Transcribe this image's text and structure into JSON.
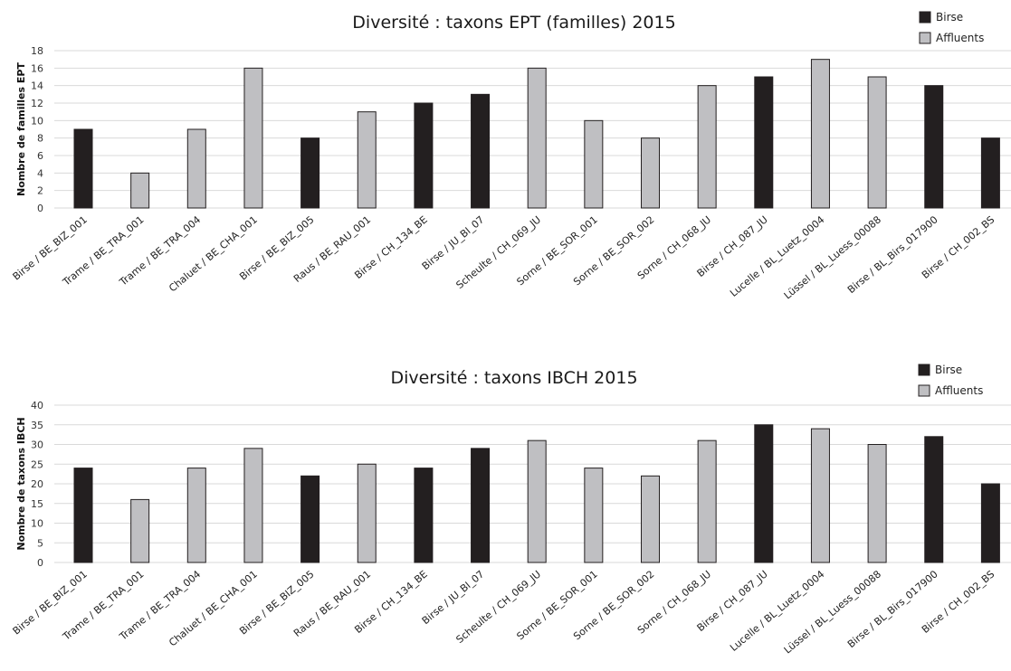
{
  "colors": {
    "Birse": "#231f20",
    "Affluents": "#bfbfc2",
    "bar_outline": "#231f20",
    "grid": "#d9d9d9"
  },
  "chart_data": [
    {
      "type": "bar",
      "title": "Diversité : taxons EPT (familles) 2015",
      "ylabel": "Nombre de familles EPT",
      "ylim": [
        0,
        18
      ],
      "yticks": [
        0,
        2,
        4,
        6,
        8,
        10,
        12,
        14,
        16,
        18
      ],
      "grid": true,
      "legend_position": "top-right",
      "legend": [
        "Birse",
        "Affluents"
      ],
      "categories": [
        "Birse / BE_BIZ_001",
        "Trame / BE_TRA_001",
        "Trame / BE_TRA_004",
        "Chaluet / BE_CHA_001",
        "Birse / BE_BIZ_005",
        "Raus / BE_RAU_001",
        "Birse / CH_134_BE",
        "Birse / JU_BI_07",
        "Scheulte / CH_069_JU",
        "Sorne / BE_SOR_001",
        "Sorne / BE_SOR_002",
        "Sorne / CH_068_JU",
        "Birse / CH_087_JU",
        "Lucelle / BL_Luetz_0004",
        "Lüssel / BL_Luess_00088",
        "Birse / BL_Birs_017900",
        "Birse / CH_002_BS"
      ],
      "values": [
        9,
        4,
        9,
        16,
        8,
        11,
        12,
        13,
        16,
        10,
        8,
        14,
        15,
        17,
        15,
        14,
        8
      ],
      "groups": [
        "Birse",
        "Affluents",
        "Affluents",
        "Affluents",
        "Birse",
        "Affluents",
        "Birse",
        "Birse",
        "Affluents",
        "Affluents",
        "Affluents",
        "Affluents",
        "Birse",
        "Affluents",
        "Affluents",
        "Birse",
        "Birse"
      ]
    },
    {
      "type": "bar",
      "title": "Diversité : taxons IBCH 2015",
      "ylabel": "Nombre de taxons IBCH",
      "ylim": [
        0,
        40
      ],
      "yticks": [
        0,
        5,
        10,
        15,
        20,
        25,
        30,
        35,
        40
      ],
      "grid": true,
      "legend_position": "top-right",
      "legend": [
        "Birse",
        "Affluents"
      ],
      "categories": [
        "Birse / BE_BIZ_001",
        "Trame / BE_TRA_001",
        "Trame / BE_TRA_004",
        "Chaluet / BE_CHA_001",
        "Birse / BE_BIZ_005",
        "Raus / BE_RAU_001",
        "Birse / CH_134_BE",
        "Birse / JU_BI_07",
        "Scheulte / CH_069_JU",
        "Sorne / BE_SOR_001",
        "Sorne / BE_SOR_002",
        "Sorne / CH_068_JU",
        "Birse / CH_087_JU",
        "Lucelle / BL_Luetz_0004",
        "Lüssel / BL_Luess_00088",
        "Birse / BL_Birs_017900",
        "Birse / CH_002_BS"
      ],
      "values": [
        24,
        16,
        24,
        29,
        22,
        25,
        24,
        29,
        31,
        24,
        22,
        31,
        35,
        34,
        30,
        32,
        20
      ],
      "groups": [
        "Birse",
        "Affluents",
        "Affluents",
        "Affluents",
        "Birse",
        "Affluents",
        "Birse",
        "Birse",
        "Affluents",
        "Affluents",
        "Affluents",
        "Affluents",
        "Birse",
        "Affluents",
        "Affluents",
        "Birse",
        "Birse"
      ]
    }
  ]
}
